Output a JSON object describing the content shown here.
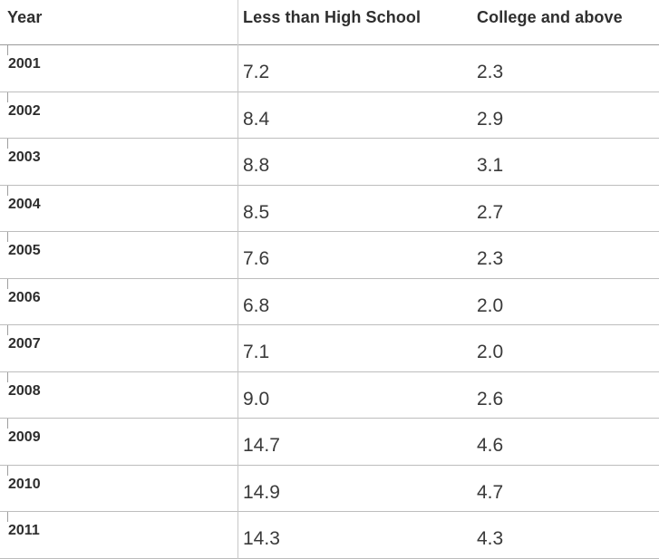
{
  "chart_data": {
    "type": "table",
    "columns": [
      "Year",
      "Less than High School",
      "College and above"
    ],
    "rows": [
      [
        "2001",
        "7.2",
        "2.3"
      ],
      [
        "2002",
        "8.4",
        "2.9"
      ],
      [
        "2003",
        "8.8",
        "3.1"
      ],
      [
        "2004",
        "8.5",
        "2.7"
      ],
      [
        "2005",
        "7.6",
        "2.3"
      ],
      [
        "2006",
        "6.8",
        "2.0"
      ],
      [
        "2007",
        "7.1",
        "2.0"
      ],
      [
        "2008",
        "9.0",
        "2.6"
      ],
      [
        "2009",
        "14.7",
        "4.6"
      ],
      [
        "2010",
        "14.9",
        "4.7"
      ],
      [
        "2011",
        "14.3",
        "4.3"
      ]
    ]
  }
}
